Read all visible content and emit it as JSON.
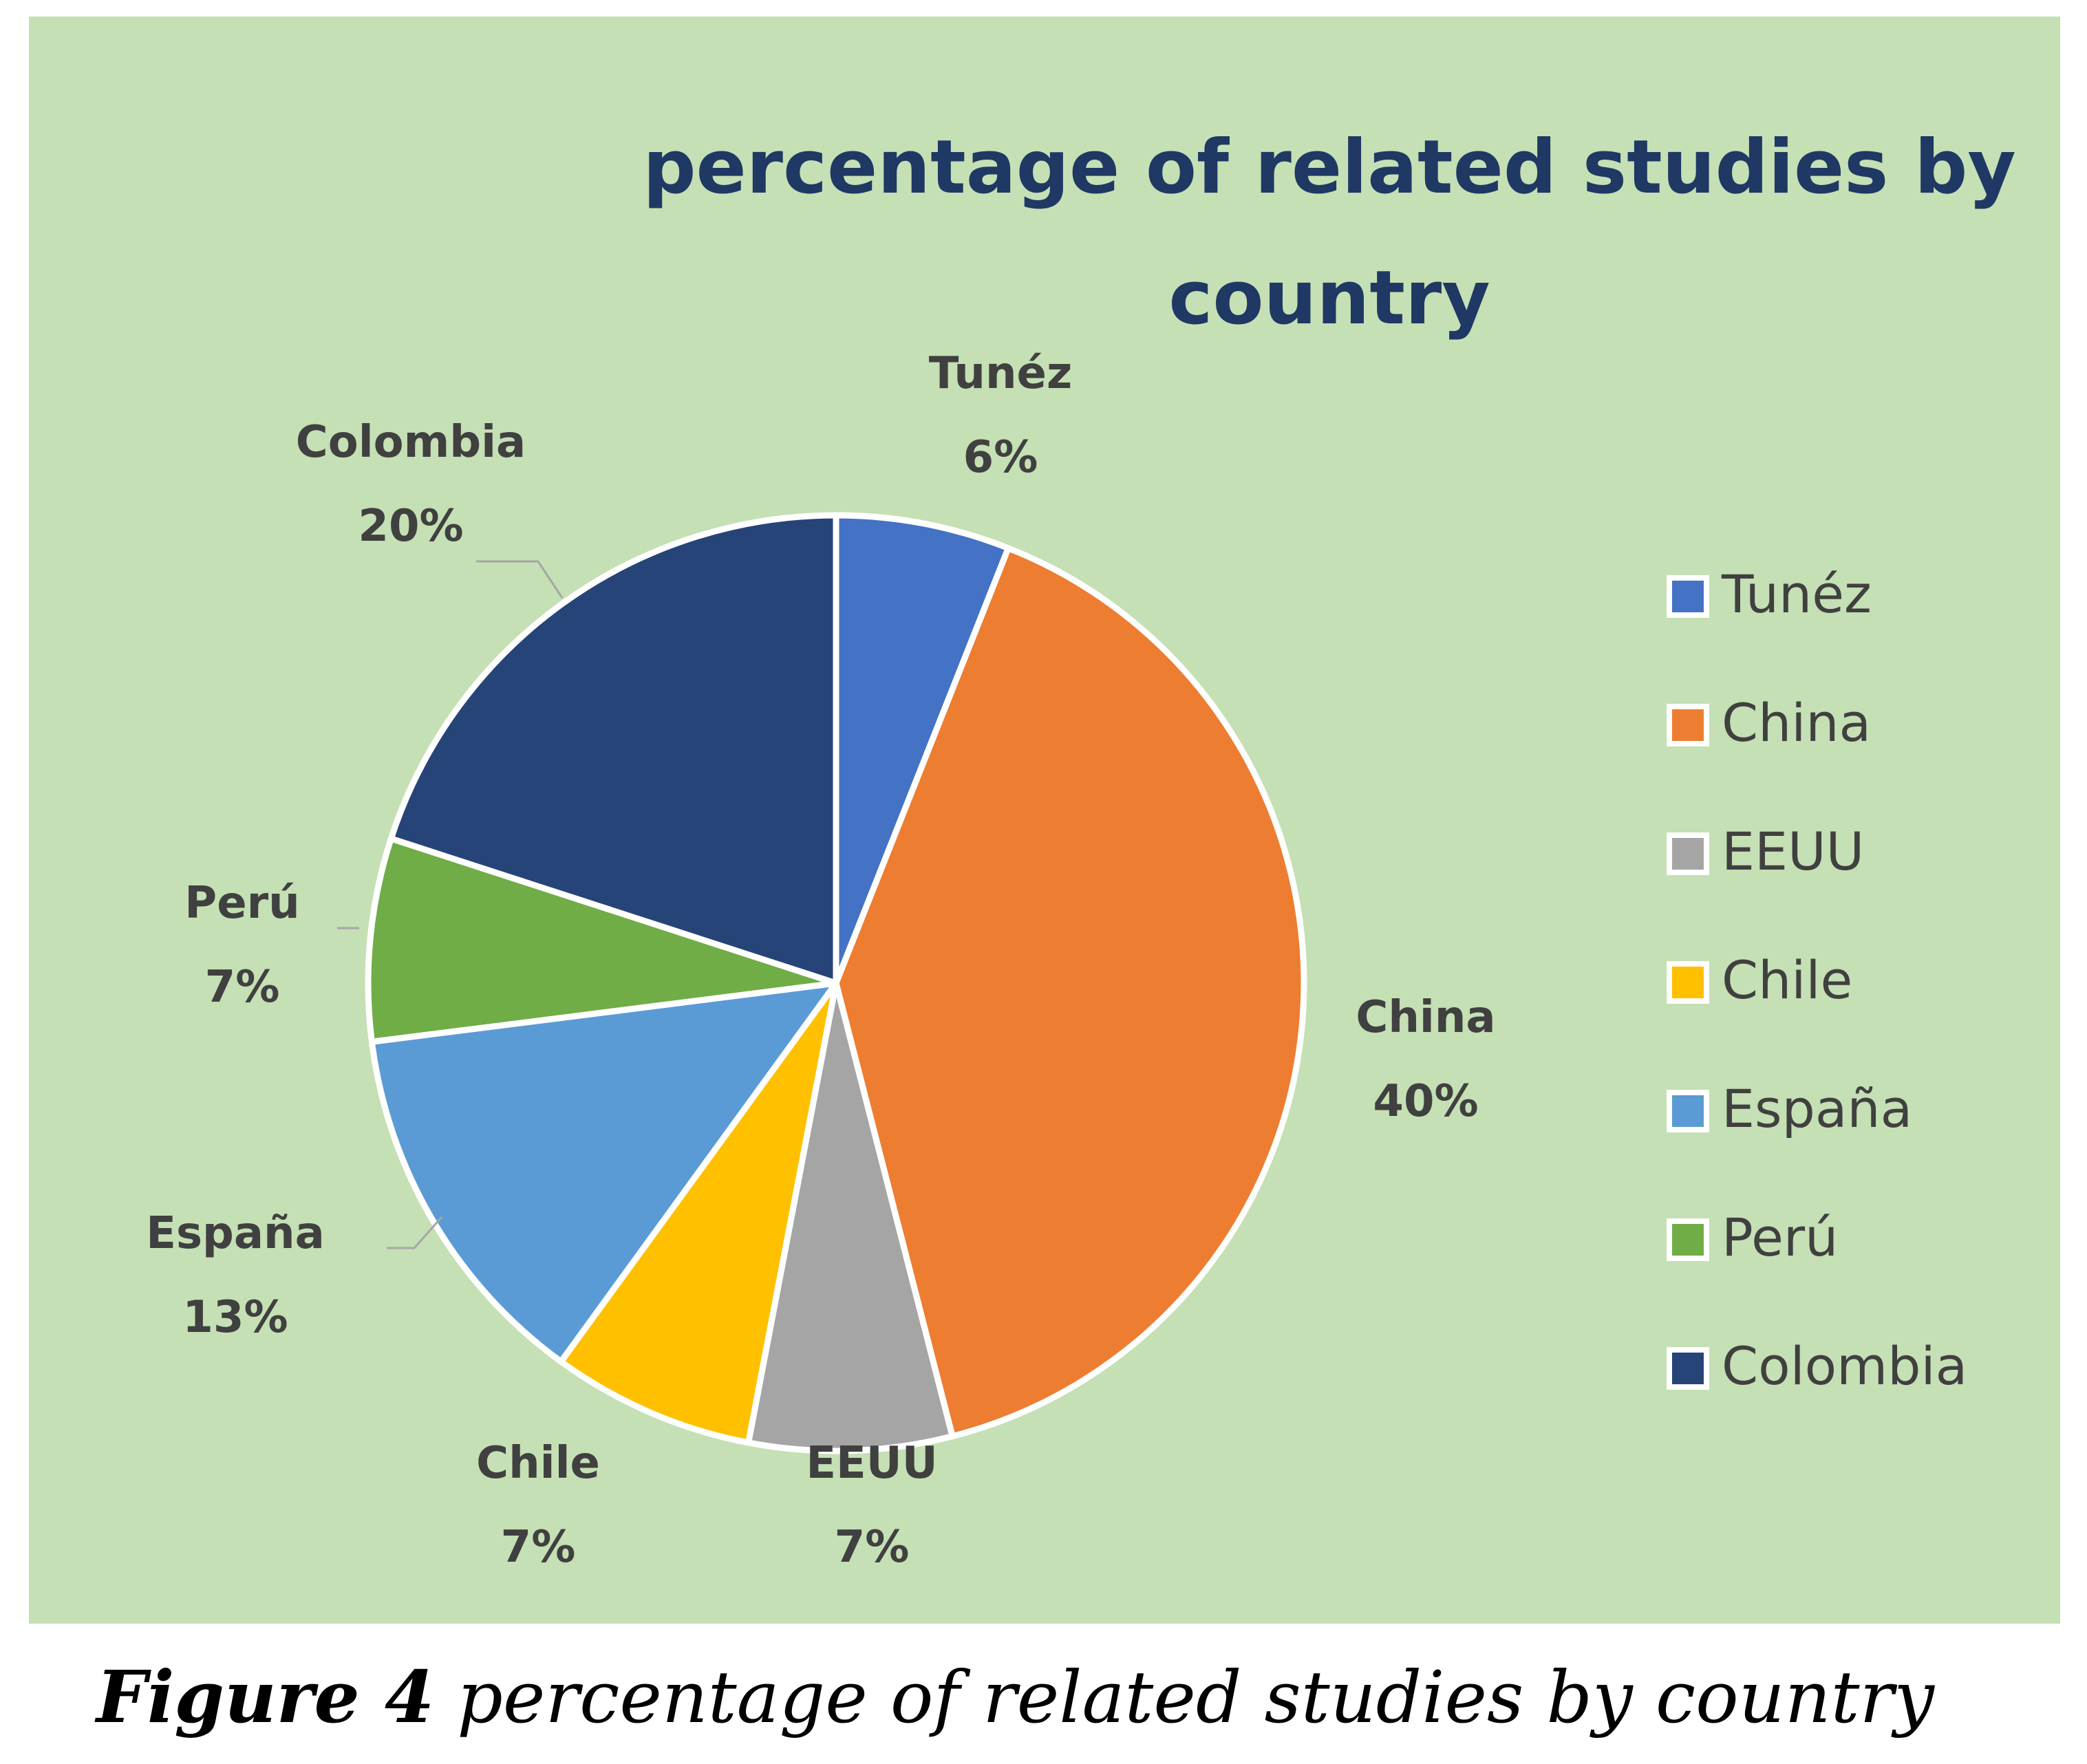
{
  "chart_data": {
    "type": "pie",
    "title_lines": [
      "percentage of related studies by",
      "country"
    ],
    "categories": [
      "Tunéz",
      "China",
      "EEUU",
      "Chile",
      "España",
      "Perú",
      "Colombia"
    ],
    "values": [
      6,
      40,
      7,
      7,
      13,
      7,
      20
    ],
    "value_labels": [
      "6%",
      "40%",
      "7%",
      "7%",
      "13%",
      "7%",
      "20%"
    ],
    "colors": [
      "#4472c4",
      "#ed7d31",
      "#a5a5a5",
      "#ffc000",
      "#5b9bd5",
      "#70ad47",
      "#264478"
    ],
    "legend_position": "right",
    "background": "#c5e0b4"
  },
  "caption": {
    "label": "Figure 4",
    "text": " percentage of related studies by country"
  }
}
